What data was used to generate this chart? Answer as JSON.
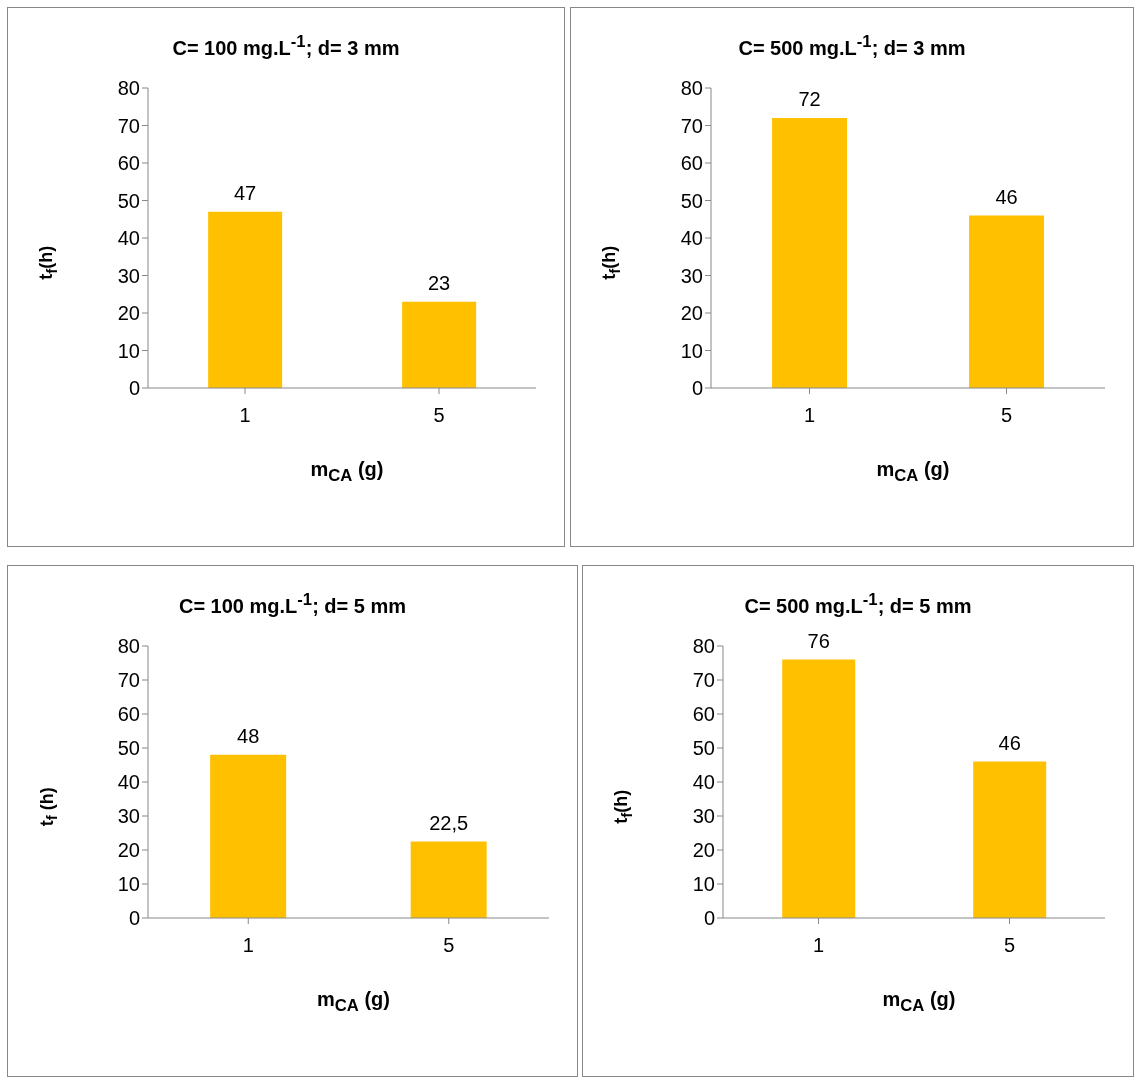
{
  "chart_data": [
    {
      "type": "bar",
      "title": "C= 100 mg.L$^{-1}$; d= 3 mm",
      "xlabel": "m$_{CA}$ (g)",
      "ylabel": "t$_{f}$(h)",
      "categories": [
        "1",
        "5"
      ],
      "values": [
        47,
        23
      ],
      "value_labels": [
        "47",
        "23"
      ],
      "color": "#ffc000",
      "ylim": [
        0,
        80
      ],
      "yticks": [
        0,
        10,
        20,
        30,
        40,
        50,
        60,
        70,
        80
      ]
    },
    {
      "type": "bar",
      "title": "C= 500 mg.L$^{-1}$; d= 3 mm",
      "xlabel": "m$_{CA}$ (g)",
      "ylabel": "t$_{f}$(h)",
      "categories": [
        "1",
        "5"
      ],
      "values": [
        72,
        46
      ],
      "value_labels": [
        "72",
        "46"
      ],
      "color": "#ffc000",
      "ylim": [
        0,
        80
      ],
      "yticks": [
        0,
        10,
        20,
        30,
        40,
        50,
        60,
        70,
        80
      ]
    },
    {
      "type": "bar",
      "title": "C= 100 mg.L$^{-1}$; d= 5 mm",
      "xlabel": "m$_{CA}$ (g)",
      "ylabel": "t$_{f}$ (h)",
      "categories": [
        "1",
        "5"
      ],
      "values": [
        48,
        22.5
      ],
      "value_labels": [
        "48",
        "22,5"
      ],
      "color": "#ffc000",
      "ylim": [
        0,
        80
      ],
      "yticks": [
        0,
        10,
        20,
        30,
        40,
        50,
        60,
        70,
        80
      ]
    },
    {
      "type": "bar",
      "title": "C= 500 mg.L$^{-1}$; d= 5 mm",
      "xlabel": "m$_{CA}$ (g)",
      "ylabel": "t$_{f}$(h)",
      "categories": [
        "1",
        "5"
      ],
      "values": [
        76,
        46
      ],
      "value_labels": [
        "76",
        "46"
      ],
      "color": "#ffc000",
      "ylim": [
        0,
        80
      ],
      "yticks": [
        0,
        10,
        20,
        30,
        40,
        50,
        60,
        70,
        80
      ]
    }
  ]
}
